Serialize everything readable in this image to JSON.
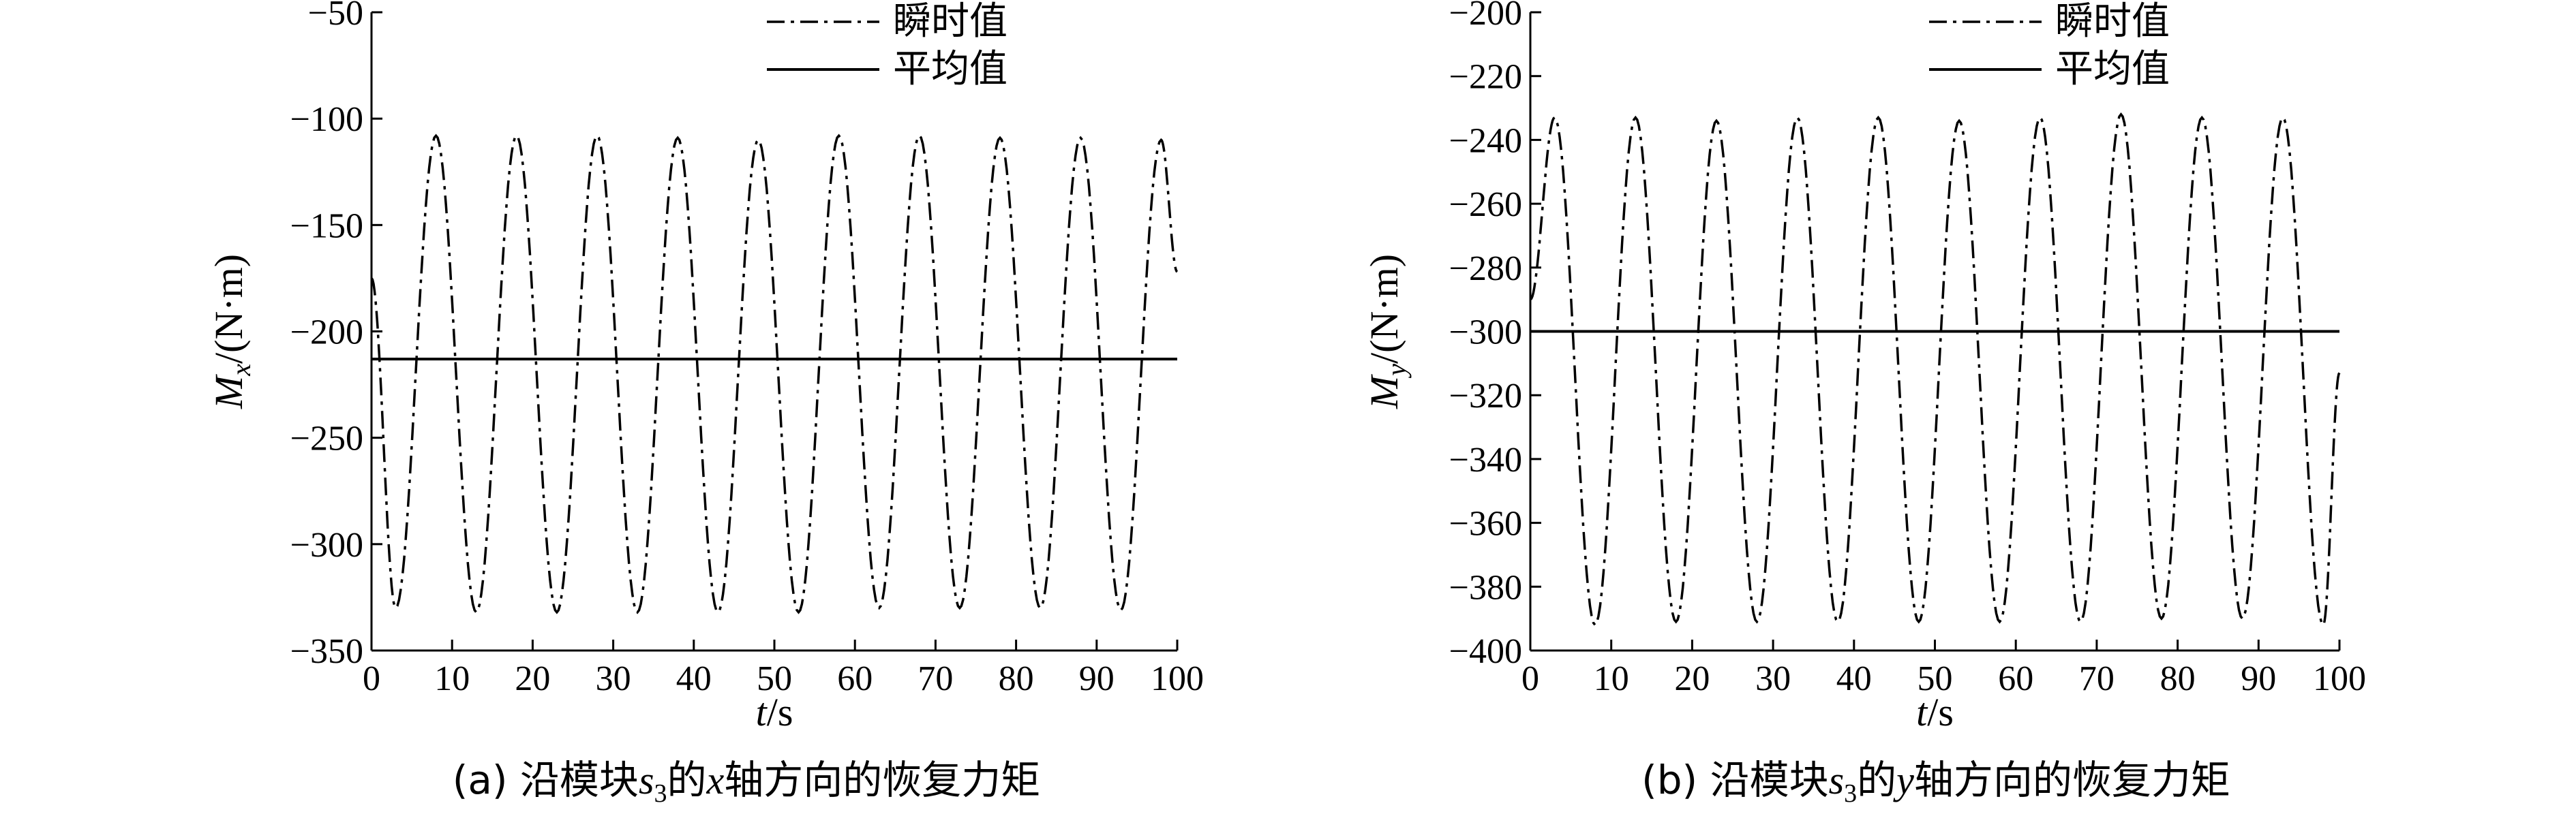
{
  "chart_data": [
    {
      "type": "line",
      "panel": "a",
      "xlabel": {
        "var": "t",
        "unit": "/s"
      },
      "ylabel": {
        "var": "M",
        "sub": "x",
        "unit": "/(N·m)"
      },
      "xlim": [
        0,
        100
      ],
      "ylim": [
        -350,
        -50
      ],
      "xticks": [
        0,
        10,
        20,
        30,
        40,
        50,
        60,
        70,
        80,
        90,
        100
      ],
      "yticks": [
        -350,
        -300,
        -250,
        -200,
        -150,
        -100,
        -50
      ],
      "legend": {
        "placement": "top-right",
        "entries": [
          "瞬时值",
          "平均值"
        ]
      },
      "series": [
        {
          "name": "瞬时值",
          "style": "dash-dot",
          "x": [
            0,
            3,
            8,
            13,
            18,
            23,
            28,
            33,
            38,
            43,
            48,
            53,
            58,
            63,
            68,
            73,
            78,
            83,
            88,
            93,
            98,
            100
          ],
          "y": [
            -175,
            -330,
            -108,
            -332,
            -108,
            -332,
            -108,
            -332,
            -109,
            -332,
            -110,
            -332,
            -108,
            -330,
            -108,
            -330,
            -109,
            -330,
            -109,
            -331,
            -110,
            -172
          ]
        },
        {
          "name": "平均值",
          "style": "solid",
          "x": [
            0,
            100
          ],
          "y": [
            -213,
            -213
          ]
        }
      ],
      "caption": {
        "prefix": "(a) 沿模块",
        "var": "s",
        "sub": "3",
        "mid": "的",
        "axis": "x",
        "suffix": "轴方向的恢复力矩"
      }
    },
    {
      "type": "line",
      "panel": "b",
      "xlabel": {
        "var": "t",
        "unit": "/s"
      },
      "ylabel": {
        "var": "M",
        "sub": "y",
        "unit": "/(N·m)"
      },
      "xlim": [
        0,
        100
      ],
      "ylim": [
        -400,
        -200
      ],
      "xticks": [
        0,
        10,
        20,
        30,
        40,
        50,
        60,
        70,
        80,
        90,
        100
      ],
      "yticks": [
        -400,
        -380,
        -360,
        -340,
        -320,
        -300,
        -280,
        -260,
        -240,
        -220,
        -200
      ],
      "legend": {
        "placement": "top-right",
        "entries": [
          "瞬时值",
          "平均值"
        ]
      },
      "series": [
        {
          "name": "瞬时值",
          "style": "dash-dot",
          "x": [
            0,
            3,
            8,
            13,
            18,
            23,
            28,
            33,
            38,
            43,
            48,
            53,
            58,
            63,
            68,
            73,
            78,
            83,
            88,
            93,
            98,
            100
          ],
          "y": [
            -290,
            -233,
            -392,
            -233,
            -391,
            -234,
            -391,
            -233,
            -391,
            -233,
            -391,
            -234,
            -391,
            -233,
            -391,
            -232,
            -390,
            -233,
            -390,
            -233,
            -392,
            -313
          ]
        },
        {
          "name": "平均值",
          "style": "solid",
          "x": [
            0,
            100
          ],
          "y": [
            -300,
            -300
          ]
        }
      ],
      "caption": {
        "prefix": "(b) 沿模块",
        "var": "s",
        "sub": "3",
        "mid": "的",
        "axis": "y",
        "suffix": "轴方向的恢复力矩"
      }
    }
  ]
}
